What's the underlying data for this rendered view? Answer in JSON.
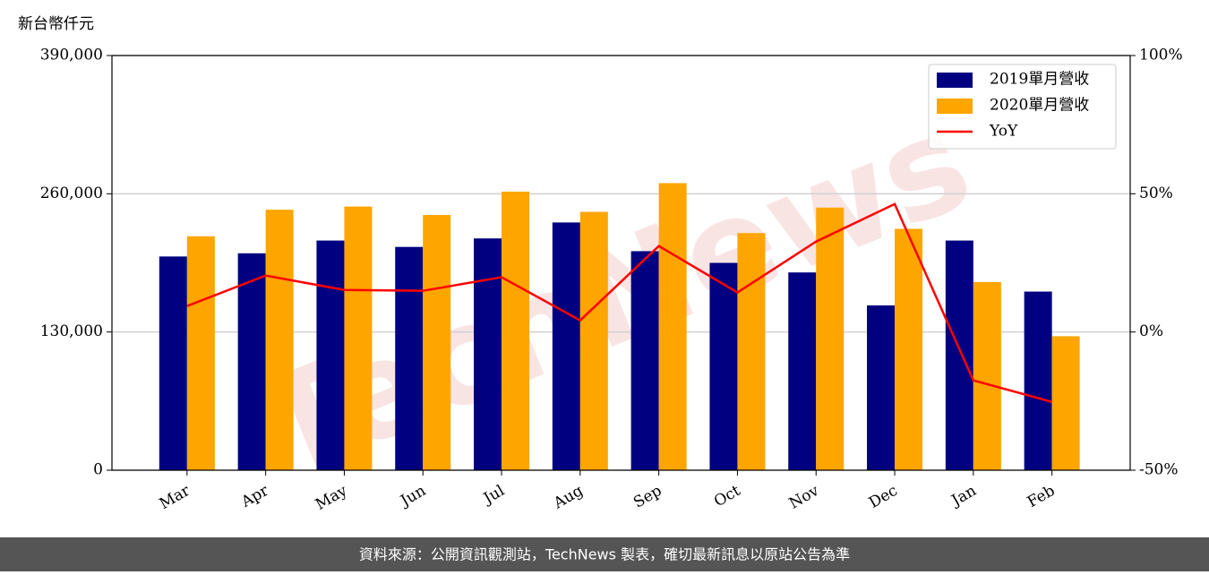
{
  "chart_data": {
    "type": "bar-line",
    "ylabel": "新台幣仟元",
    "watermark": "TechNews",
    "footer": "資料來源：公開資訊觀測站，TechNews 製表，確切最新訊息以原站公告為準",
    "categories": [
      "Mar",
      "Apr",
      "May",
      "Jun",
      "Jul",
      "Aug",
      "Sep",
      "Oct",
      "Nov",
      "Dec",
      "Jan",
      "Feb"
    ],
    "series": [
      {
        "name": "2019單月營收",
        "color": "#000080",
        "kind": "bar",
        "values": [
          201000,
          204000,
          216000,
          210000,
          218000,
          233000,
          206000,
          195000,
          186000,
          155000,
          216000,
          168000
        ]
      },
      {
        "name": "2020單月營收",
        "color": "#ffa500",
        "kind": "bar",
        "values": [
          220000,
          245000,
          248000,
          240000,
          262000,
          243000,
          270000,
          223000,
          247000,
          227000,
          177000,
          126000
        ]
      },
      {
        "name": "YoY",
        "color": "#ff0000",
        "kind": "line",
        "axis": "y2",
        "values": [
          9.4,
          20.4,
          15.2,
          14.9,
          19.8,
          4.2,
          31.1,
          14.3,
          32.7,
          46.3,
          -17.5,
          -25.3
        ]
      }
    ],
    "ylim": [
      0,
      390000
    ],
    "yticks": [
      0,
      {
        "value": 130000,
        "label": "130,000"
      },
      {
        "value": 260000,
        "label": "260,000"
      },
      {
        "value": 390000,
        "label": "390,000"
      }
    ],
    "y2lim": [
      -50,
      100
    ],
    "y2ticks": [
      {
        "value": -50,
        "label": "-50%"
      },
      {
        "value": 0,
        "label": "0%"
      },
      {
        "value": 50,
        "label": "50%"
      },
      {
        "value": 100,
        "label": "100%"
      }
    ],
    "grid": true,
    "legend": "upper right"
  }
}
